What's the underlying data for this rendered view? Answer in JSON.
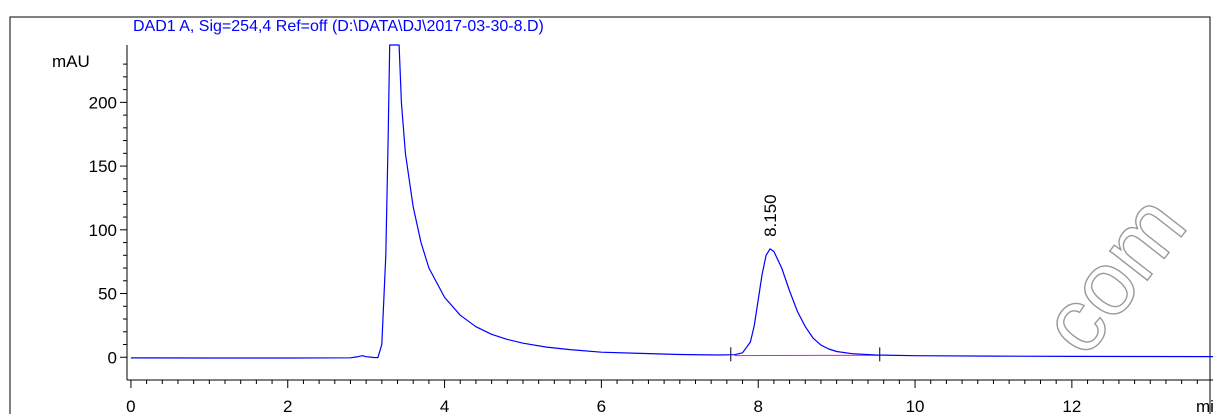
{
  "chart_data": {
    "type": "line",
    "title": "DAD1 A, Sig=254,4 Ref=off (D:\\DATA\\DJ\\2017-03-30-8.D)",
    "ylabel": "mAU",
    "xlabel": "mi",
    "xlim": [
      -0.05,
      13.8
    ],
    "ylim": [
      -10,
      245
    ],
    "x_ticks": [
      0,
      2,
      4,
      6,
      8,
      10,
      12
    ],
    "x_tick_labels": [
      "0",
      "2",
      "4",
      "6",
      "8",
      "10",
      "12"
    ],
    "y_ticks": [
      0,
      50,
      100,
      150,
      200
    ],
    "y_tick_labels": [
      "0",
      "50",
      "100",
      "150",
      "200"
    ],
    "grid": false,
    "series": [
      {
        "color": "#0000ff",
        "points": [
          [
            0,
            -0.5
          ],
          [
            1,
            -0.6
          ],
          [
            2,
            -0.6
          ],
          [
            2.8,
            -0.4
          ],
          [
            2.9,
            0.5
          ],
          [
            2.95,
            1.2
          ],
          [
            3.0,
            0.4
          ],
          [
            3.1,
            -0.2
          ],
          [
            3.15,
            -0.3
          ],
          [
            3.2,
            10
          ],
          [
            3.25,
            80
          ],
          [
            3.28,
            170
          ],
          [
            3.3,
            245
          ],
          [
            3.42,
            245
          ],
          [
            3.45,
            200
          ],
          [
            3.5,
            160
          ],
          [
            3.6,
            118
          ],
          [
            3.7,
            90
          ],
          [
            3.8,
            70
          ],
          [
            4.0,
            47
          ],
          [
            4.2,
            33
          ],
          [
            4.4,
            24
          ],
          [
            4.6,
            18
          ],
          [
            4.8,
            14
          ],
          [
            5.0,
            11
          ],
          [
            5.3,
            8
          ],
          [
            5.6,
            6
          ],
          [
            6.0,
            4
          ],
          [
            6.5,
            3
          ],
          [
            7.0,
            2.2
          ],
          [
            7.5,
            1.8
          ],
          [
            7.7,
            2.0
          ],
          [
            7.8,
            3.5
          ],
          [
            7.9,
            12
          ],
          [
            7.95,
            25
          ],
          [
            8.0,
            45
          ],
          [
            8.05,
            65
          ],
          [
            8.1,
            80
          ],
          [
            8.15,
            85
          ],
          [
            8.2,
            83
          ],
          [
            8.3,
            70
          ],
          [
            8.4,
            52
          ],
          [
            8.5,
            36
          ],
          [
            8.6,
            24
          ],
          [
            8.7,
            15
          ],
          [
            8.8,
            9.5
          ],
          [
            8.9,
            6.5
          ],
          [
            9.0,
            4.5
          ],
          [
            9.2,
            2.8
          ],
          [
            9.5,
            1.8
          ],
          [
            10,
            1.2
          ],
          [
            11,
            0.9
          ],
          [
            12,
            0.7
          ],
          [
            13,
            0.6
          ],
          [
            13.8,
            0.5
          ]
        ]
      }
    ],
    "baselines": [
      {
        "color": "#ff00ff",
        "points": [
          [
            7.7,
            1.3
          ],
          [
            9.55,
            1.6
          ]
        ]
      }
    ],
    "integration_marks": [
      7.65,
      9.55
    ],
    "peak_annotations": [
      {
        "label": "8.150",
        "x": 8.15,
        "y": 85
      }
    ],
    "watermark": "com"
  }
}
